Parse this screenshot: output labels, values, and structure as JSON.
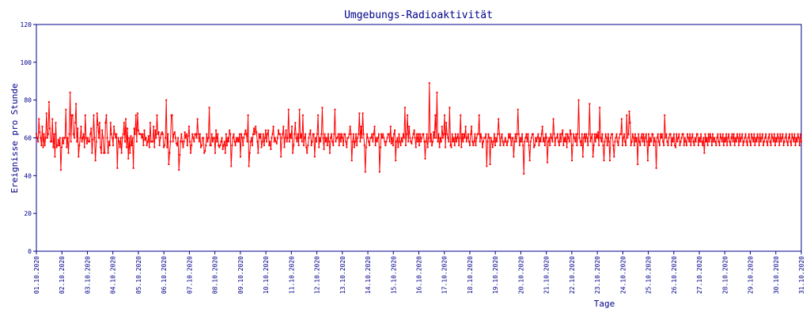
{
  "chart_data": {
    "type": "line",
    "title": "Umgebungs-Radioaktivität",
    "xlabel": "Tage",
    "ylabel": "Ereignisse pro Stunde",
    "ylim": [
      0,
      120
    ],
    "yticks": [
      "0",
      "20",
      "40",
      "60",
      "80",
      "100",
      "120"
    ],
    "xticks": [
      "01.10.2020",
      "02.10.2020",
      "03.10.2020",
      "04.10.2020",
      "05.10.2020",
      "06.10.2020",
      "07.10.2020",
      "08.10.2020",
      "09.10.2020",
      "10.10.2020",
      "11.10.2020",
      "12.10.2020",
      "13.10.2020",
      "14.10.2020",
      "15.10.2020",
      "16.10.2020",
      "17.10.2020",
      "18.10.2020",
      "19.10.2020",
      "20.10.2020",
      "21.10.2020",
      "22.10.2020",
      "23.10.2020",
      "24.10.2020",
      "25.10.2020",
      "26.10.2020",
      "27.10.2020",
      "28.10.2020",
      "29.10.2020",
      "30.10.2020",
      "31.10.2020"
    ],
    "grid": false,
    "colors": {
      "series": "#ff0000",
      "axes": "#00008b",
      "background": "#ffffff"
    },
    "series": [
      {
        "x_start": "2020-10-01 00:00",
        "x_step_hours": 1,
        "values": [
          62,
          60,
          58,
          70,
          63,
          60,
          56,
          66,
          55,
          62,
          56,
          60,
          73,
          60,
          62,
          79,
          65,
          58,
          58,
          70,
          55,
          62,
          50,
          68,
          55,
          56,
          59,
          56,
          60,
          43,
          55,
          60,
          57,
          60,
          60,
          75,
          55,
          60,
          52,
          62,
          84,
          58,
          72,
          72,
          62,
          60,
          68,
          78,
          58,
          65,
          50,
          56,
          60,
          66,
          58,
          60,
          62,
          55,
          72,
          60,
          57,
          60,
          58,
          58,
          62,
          65,
          52,
          59,
          72,
          60,
          48,
          58,
          73,
          67,
          60,
          68,
          55,
          52,
          64,
          60,
          52,
          52,
          68,
          72,
          60,
          52,
          58,
          56,
          68,
          62,
          60,
          56,
          66,
          62,
          60,
          62,
          44,
          60,
          58,
          55,
          60,
          52,
          60,
          62,
          68,
          58,
          70,
          55,
          65,
          49,
          60,
          52,
          61,
          56,
          60,
          44,
          65,
          62,
          72,
          58,
          73,
          64,
          62,
          62,
          62,
          60,
          62,
          56,
          64,
          59,
          60,
          56,
          58,
          61,
          55,
          68,
          58,
          58,
          58,
          66,
          55,
          64,
          60,
          72,
          62,
          63,
          56,
          60,
          62,
          63,
          62,
          55,
          56,
          60,
          80,
          55,
          62,
          46,
          52,
          58,
          72,
          72,
          58,
          62,
          63,
          60,
          57,
          56,
          60,
          43,
          51,
          58,
          62,
          58,
          55,
          58,
          63,
          60,
          62,
          56,
          61,
          66,
          58,
          52,
          56,
          62,
          60,
          58,
          62,
          62,
          60,
          70,
          62,
          58,
          62,
          55,
          56,
          60,
          60,
          52,
          53,
          56,
          62,
          58,
          60,
          76,
          56,
          56,
          62,
          58,
          60,
          60,
          52,
          64,
          58,
          62,
          56,
          55,
          56,
          58,
          60,
          54,
          56,
          58,
          52,
          62,
          56,
          60,
          58,
          64,
          62,
          45,
          56,
          60,
          62,
          58,
          56,
          60,
          58,
          60,
          58,
          62,
          50,
          62,
          60,
          56,
          60,
          62,
          64,
          62,
          58,
          72,
          45,
          52,
          58,
          60,
          56,
          62,
          65,
          62,
          66,
          63,
          58,
          52,
          62,
          60,
          62,
          55,
          58,
          62,
          56,
          60,
          64,
          58,
          62,
          64,
          56,
          58,
          54,
          60,
          62,
          66,
          58,
          60,
          58,
          57,
          60,
          64,
          62,
          62,
          50,
          60,
          62,
          66,
          55,
          60,
          64,
          58,
          60,
          75,
          58,
          62,
          60,
          66,
          52,
          56,
          62,
          68,
          60,
          58,
          62,
          56,
          75,
          60,
          62,
          58,
          72,
          56,
          60,
          62,
          55,
          52,
          56,
          60,
          62,
          64,
          56,
          58,
          62,
          62,
          50,
          60,
          58,
          62,
          72,
          55,
          60,
          58,
          62,
          76,
          60,
          54,
          62,
          58,
          60,
          56,
          62,
          58,
          52,
          60,
          62,
          58,
          56,
          62,
          75,
          58,
          60,
          60,
          62,
          56,
          62,
          58,
          62,
          60,
          56,
          62,
          62,
          58,
          55,
          60,
          60,
          62,
          66,
          62,
          48,
          58,
          62,
          55,
          58,
          62,
          56,
          60,
          62,
          73,
          58,
          66,
          60,
          73,
          62,
          56,
          42,
          55,
          62,
          60,
          58,
          56,
          60,
          60,
          62,
          58,
          62,
          66,
          56,
          60,
          58,
          60,
          62,
          42,
          55,
          62,
          60,
          62,
          60,
          58,
          56,
          58,
          60,
          62,
          62,
          58,
          66,
          57,
          60,
          56,
          62,
          64,
          48,
          58,
          60,
          55,
          62,
          58,
          56,
          60,
          58,
          62,
          60,
          76,
          56,
          62,
          72,
          58,
          66,
          60,
          58,
          57,
          60,
          62,
          64,
          60,
          55,
          62,
          58,
          62,
          56,
          62,
          58,
          60,
          62,
          62,
          58,
          49,
          58,
          62,
          55,
          60,
          89,
          58,
          62,
          56,
          58,
          63,
          60,
          72,
          60,
          84,
          58,
          62,
          55,
          60,
          58,
          66,
          60,
          62,
          72,
          55,
          68,
          62,
          60,
          58,
          76,
          56,
          55,
          62,
          58,
          60,
          56,
          62,
          58,
          60,
          62,
          56,
          60,
          72,
          55,
          62,
          58,
          62,
          60,
          66,
          58,
          60,
          62,
          58,
          56,
          62,
          66,
          58,
          56,
          58,
          62,
          56,
          60,
          62,
          62,
          72,
          58,
          62,
          60,
          55,
          58,
          60,
          60,
          62,
          45,
          58,
          62,
          60,
          46,
          60,
          58,
          55,
          58,
          62,
          56,
          60,
          58,
          62,
          70,
          62,
          56,
          60,
          62,
          58,
          56,
          58,
          60,
          58,
          56,
          58,
          62,
          60,
          62,
          56,
          60,
          60,
          50,
          58,
          62,
          58,
          62,
          75,
          62,
          56,
          60,
          58,
          62,
          56,
          41,
          58,
          60,
          62,
          58,
          62,
          56,
          48,
          58,
          60,
          62,
          62,
          55,
          56,
          60,
          58,
          60,
          62,
          56,
          60,
          58,
          62,
          66,
          58,
          60,
          56,
          62,
          60,
          47,
          58,
          60,
          56,
          62,
          60,
          58,
          70,
          62,
          56,
          60,
          60,
          62,
          58,
          56,
          62,
          58,
          62,
          64,
          56,
          60,
          58,
          62,
          55,
          62,
          60,
          58,
          64,
          62,
          48,
          56,
          62,
          60,
          58,
          62,
          56,
          62,
          80,
          60,
          58,
          56,
          62,
          50,
          60,
          62,
          58,
          62,
          60,
          56,
          62,
          78,
          58,
          60,
          62,
          50,
          56,
          62,
          58,
          62,
          60,
          63,
          56,
          76,
          60,
          58,
          62,
          56,
          48,
          58,
          62,
          60,
          56,
          62,
          58,
          48,
          60,
          62,
          62,
          56,
          50,
          58,
          60,
          62,
          58,
          56,
          60,
          62,
          62,
          70,
          56,
          60,
          62,
          58,
          56,
          72,
          60,
          62,
          74,
          68,
          56,
          58,
          62,
          60,
          56,
          62,
          58,
          60,
          46,
          62,
          58,
          56,
          60,
          62,
          58,
          62,
          56,
          60,
          62,
          58,
          48,
          62,
          56,
          60,
          58,
          62,
          62,
          56,
          60,
          58,
          44,
          60,
          62,
          58,
          56,
          62,
          60,
          62,
          58,
          56,
          72,
          60,
          62,
          58,
          56,
          60,
          62,
          62,
          56,
          60,
          58,
          62,
          56,
          55,
          62,
          58,
          60,
          62,
          56,
          58,
          60,
          62,
          62,
          56,
          60,
          58,
          56,
          62,
          60,
          58,
          62,
          56,
          60,
          62,
          58,
          56,
          60,
          58,
          62,
          62,
          56,
          60,
          58,
          62,
          58,
          56,
          60,
          52,
          62,
          58,
          60,
          56,
          62,
          58,
          62,
          60,
          56,
          62,
          58,
          60,
          58,
          56,
          60,
          62,
          58,
          56,
          62,
          60,
          58,
          62,
          56,
          60,
          58,
          62,
          56,
          60,
          62,
          58,
          56,
          60,
          62,
          58,
          62,
          56,
          60,
          58,
          62,
          60,
          56,
          62,
          58,
          60,
          62,
          56,
          58,
          60,
          62,
          58,
          56,
          60,
          62,
          58,
          56,
          62,
          60,
          58,
          62,
          56,
          60,
          58,
          62,
          60,
          56,
          62,
          58,
          60,
          62,
          56,
          58,
          60,
          62,
          58,
          56,
          60,
          62,
          58,
          56,
          62,
          60,
          58,
          62,
          56,
          60,
          58,
          62,
          60,
          56,
          62,
          58,
          60,
          62,
          56,
          58,
          60,
          62,
          58,
          56,
          60,
          62,
          58,
          56,
          62,
          60,
          58,
          62,
          56,
          60,
          58,
          62,
          60,
          56,
          62,
          58
        ]
      }
    ]
  }
}
